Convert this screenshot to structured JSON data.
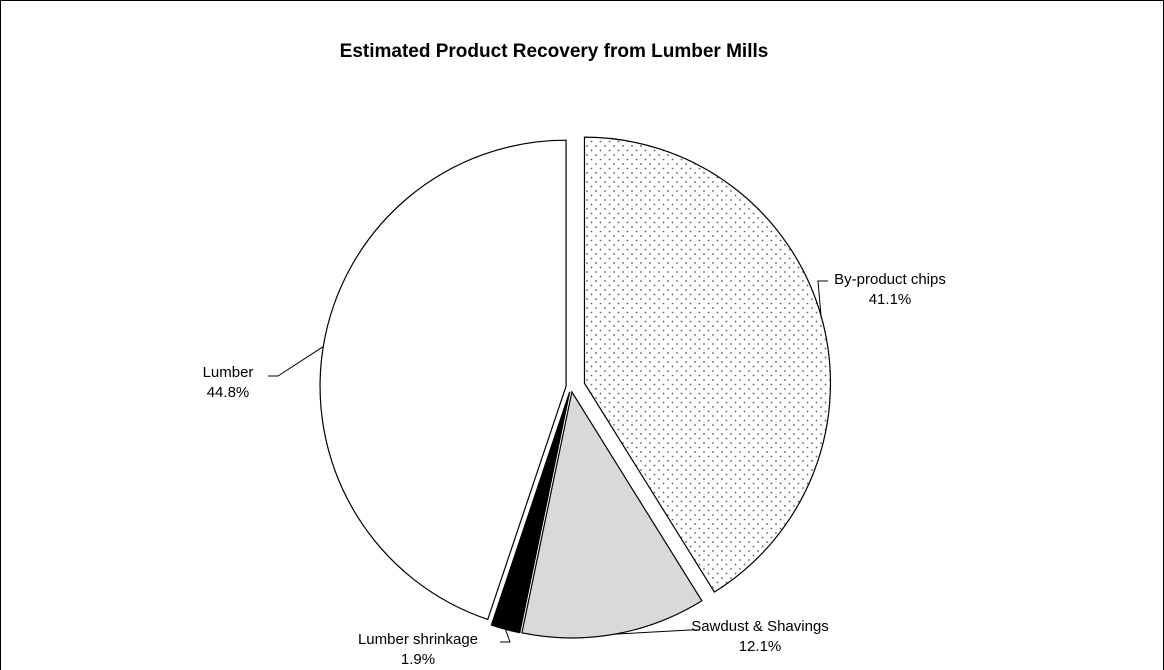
{
  "chart_data": {
    "type": "pie",
    "title": "Estimated Product Recovery from Lumber Mills",
    "categories": [
      "By-product chips",
      "Sawdust & Shavings",
      "Lumber shrinkage",
      "Lumber"
    ],
    "values": [
      41.1,
      12.1,
      1.9,
      44.8
    ],
    "value_labels": [
      "41.1%",
      "12.1%",
      "1.9%",
      "44.8%"
    ],
    "colors": [
      "url(#dots)",
      "#d9d9d9",
      "#000000",
      "#ffffff"
    ]
  }
}
